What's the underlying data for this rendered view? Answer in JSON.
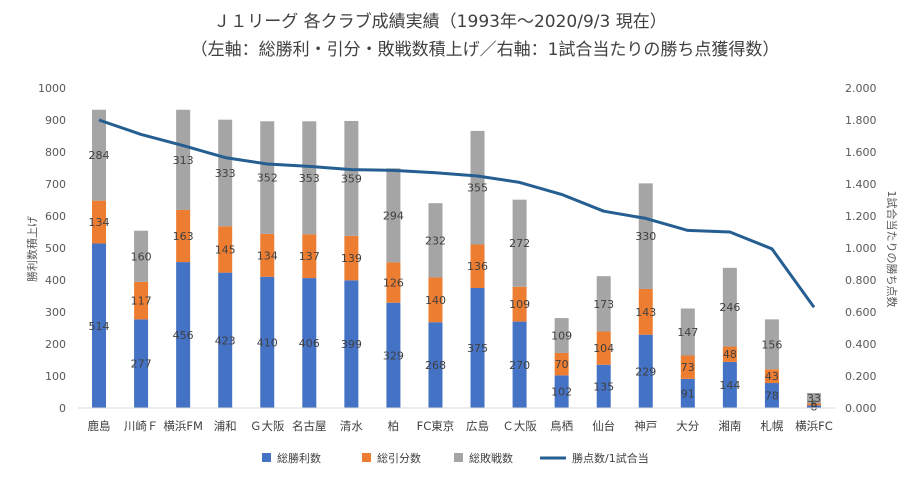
{
  "chart_data": {
    "type": "bar",
    "title": "Ｊ１リーグ 各クラブ成績実績（1993年〜2020/9/3 現在）",
    "subtitle": "（左軸：総勝利・引分・敗戦数積上げ／右軸：1試合当たりの勝ち点獲得数）",
    "ylabel": "勝利数積上げ",
    "y2label": "1試合当たりの勝ち点数",
    "ylim": [
      0,
      1000
    ],
    "y2lim": [
      0,
      2
    ],
    "yticks": [
      "0",
      "100",
      "200",
      "300",
      "400",
      "500",
      "600",
      "700",
      "800",
      "900",
      "1000"
    ],
    "y2ticks": [
      "0.000",
      "0.200",
      "0.400",
      "0.600",
      "0.800",
      "1.000",
      "1.200",
      "1.400",
      "1.600",
      "1.800",
      "2.000"
    ],
    "categories": [
      "鹿島",
      "川崎Ｆ",
      "横浜FM",
      "浦和",
      "Ｇ大阪",
      "名古屋",
      "清水",
      "柏",
      "FC東京",
      "広島",
      "Ｃ大阪",
      "鳥栖",
      "仙台",
      "神戸",
      "大分",
      "湘南",
      "札幌",
      "横浜FC"
    ],
    "series": [
      {
        "name": "総勝利数",
        "color": "#4472C4",
        "values": [
          514,
          277,
          456,
          423,
          410,
          406,
          399,
          329,
          268,
          375,
          270,
          102,
          135,
          229,
          91,
          144,
          78,
          8
        ]
      },
      {
        "name": "総引分数",
        "color": "#ED7D31",
        "values": [
          134,
          117,
          163,
          145,
          134,
          137,
          139,
          126,
          140,
          136,
          109,
          70,
          104,
          143,
          73,
          48,
          43,
          6
        ]
      },
      {
        "name": "総敗戦数",
        "color": "#A5A5A5",
        "values": [
          284,
          160,
          313,
          333,
          352,
          353,
          359,
          294,
          232,
          355,
          272,
          109,
          173,
          330,
          147,
          246,
          156,
          33
        ]
      }
    ],
    "line": {
      "name": "勝点数/1試合当",
      "color": "#255E91",
      "values": [
        1.8,
        1.71,
        1.64,
        1.565,
        1.525,
        1.51,
        1.49,
        1.485,
        1.47,
        1.45,
        1.41,
        1.335,
        1.23,
        1.185,
        1.11,
        1.1,
        0.995,
        0.63
      ]
    },
    "legend_position": "bottom",
    "grid": false
  }
}
